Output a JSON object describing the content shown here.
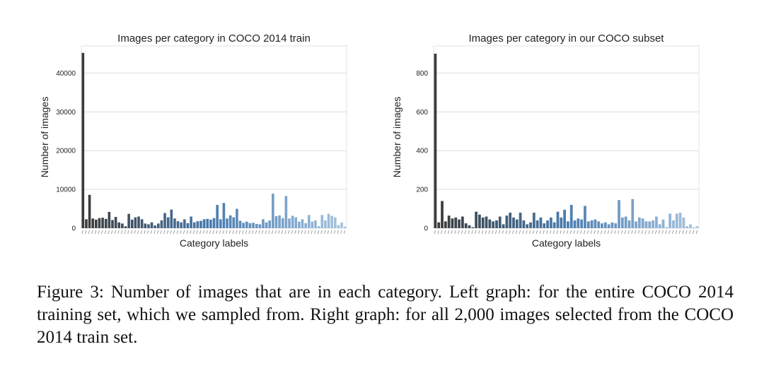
{
  "caption": "Figure 3: Number of images that are in each category. Left graph: for the entire COCO 2014 training set, which we sampled from. Right graph: for all 2,000 images selected from the COCO 2014 train set.",
  "chart_data": [
    {
      "type": "bar",
      "title": "Images per category in COCO 2014 train",
      "xlabel": "Category labels",
      "ylabel": "Number of images",
      "ylim": [
        0,
        47000
      ],
      "yticks": [
        0,
        10000,
        20000,
        30000,
        40000
      ],
      "grid": true,
      "color_start": "#3a3a3a",
      "color_mid": "#4a7db0",
      "color_end": "#a9c4e0",
      "values": [
        45200,
        2300,
        8600,
        2500,
        2200,
        2600,
        2700,
        2400,
        4200,
        2100,
        2900,
        1500,
        1200,
        500,
        3700,
        2200,
        2800,
        3000,
        2300,
        1200,
        1000,
        1500,
        700,
        1200,
        2000,
        3900,
        2800,
        4800,
        2500,
        1800,
        1500,
        2300,
        1300,
        3000,
        1500,
        1800,
        1900,
        2300,
        2400,
        2200,
        2600,
        6000,
        2300,
        6500,
        2500,
        3300,
        2800,
        5000,
        1900,
        1400,
        1700,
        1300,
        1400,
        1100,
        1000,
        2300,
        1500,
        2000,
        8900,
        3100,
        3300,
        2600,
        8300,
        2500,
        3200,
        2800,
        1700,
        2300,
        1300,
        3400,
        1700,
        2000,
        500,
        3400,
        2000,
        3700,
        3200,
        2800,
        800,
        1500,
        400
      ]
    },
    {
      "type": "bar",
      "title": "Images per category in our COCO subset",
      "xlabel": "Category labels",
      "ylabel": "Number of images",
      "ylim": [
        0,
        940
      ],
      "yticks": [
        0,
        200,
        400,
        600,
        800
      ],
      "grid": true,
      "color_start": "#3a3a3a",
      "color_mid": "#4a7db0",
      "color_end": "#a9c4e0",
      "values": [
        900,
        30,
        140,
        35,
        65,
        50,
        55,
        45,
        60,
        25,
        15,
        5,
        85,
        70,
        55,
        60,
        45,
        35,
        40,
        60,
        20,
        65,
        80,
        55,
        45,
        80,
        40,
        20,
        30,
        80,
        40,
        55,
        25,
        40,
        55,
        30,
        85,
        55,
        95,
        35,
        120,
        40,
        50,
        45,
        115,
        35,
        40,
        45,
        35,
        25,
        30,
        20,
        30,
        25,
        145,
        55,
        60,
        40,
        150,
        35,
        55,
        50,
        35,
        35,
        40,
        60,
        20,
        45,
        5,
        75,
        40,
        75,
        80,
        55,
        10,
        20,
        5,
        10
      ]
    }
  ]
}
